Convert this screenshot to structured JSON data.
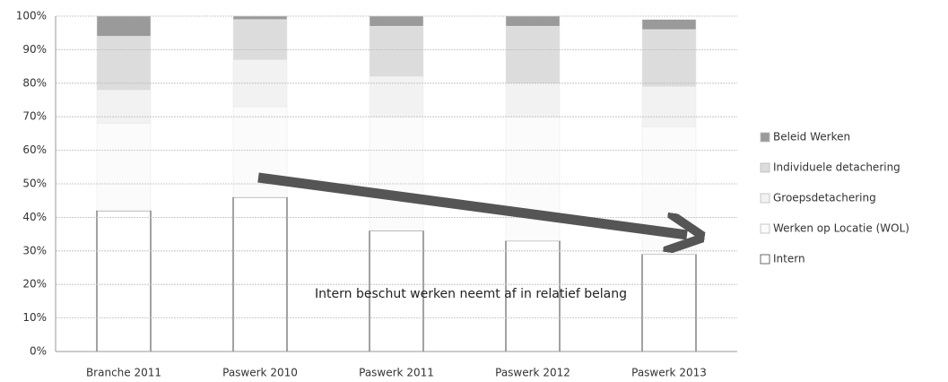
{
  "chart_data": {
    "type": "stacked_bar",
    "categories": [
      "Branche 2011",
      "Paswerk 2010",
      "Paswerk 2011",
      "Paswerk 2012",
      "Paswerk 2013"
    ],
    "series": [
      {
        "name": "Intern",
        "color": "#ffffff",
        "values": [
          42,
          46,
          36,
          33,
          29
        ]
      },
      {
        "name": "Werken op Locatie (WOL)",
        "color": "#fbfbfb",
        "values": [
          26,
          27,
          34,
          37,
          38
        ]
      },
      {
        "name": "Groepsdetachering",
        "color": "#f2f2f2",
        "values": [
          10,
          14,
          12,
          10,
          12
        ]
      },
      {
        "name": "Individuele detachering",
        "color": "#dcdcdc",
        "values": [
          16,
          12,
          15,
          17,
          17
        ]
      },
      {
        "name": "Beleid Werken",
        "color": "#9a9a9a",
        "values": [
          6,
          1,
          3,
          3,
          3
        ]
      }
    ],
    "ylim": [
      0,
      100
    ],
    "yticks": [
      {
        "value": 0,
        "label": "0%"
      },
      {
        "value": 10,
        "label": "10%"
      },
      {
        "value": 20,
        "label": "20%"
      },
      {
        "value": 30,
        "label": "30%"
      },
      {
        "value": 40,
        "label": "40%"
      },
      {
        "value": 50,
        "label": "50%"
      },
      {
        "value": 60,
        "label": "60%"
      },
      {
        "value": 70,
        "label": "70%"
      },
      {
        "value": 80,
        "label": "80%"
      },
      {
        "value": 90,
        "label": "90%"
      },
      {
        "value": 100,
        "label": "100%"
      }
    ],
    "grid": true,
    "legend": "right",
    "annotation": "Intern beschut werken neemt af in relatief belang"
  }
}
